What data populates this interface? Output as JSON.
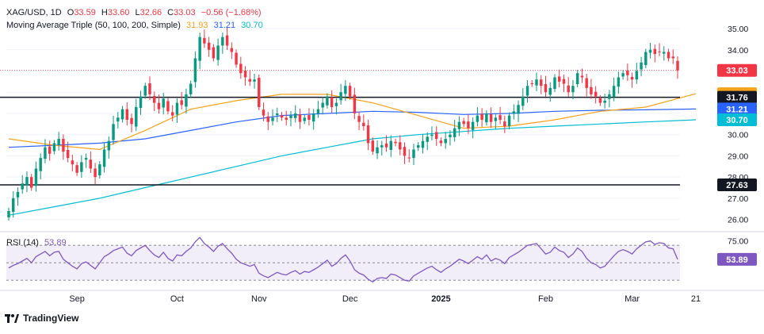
{
  "header": {
    "symbol": "XAG/USD, 1D",
    "open_label": "O",
    "open": "33.59",
    "high_label": "H",
    "high": "33.60",
    "low_label": "L",
    "low": "32.66",
    "close_label": "C",
    "close": "33.03",
    "change": "−0.56 (−1.68%)"
  },
  "ma_legend": {
    "label": "Moving Average Triple (50, 100, 200, Simple)",
    "ma50": "31.93",
    "ma100": "31.21",
    "ma200": "30.70"
  },
  "rsi_legend": {
    "label": "RSI (14)",
    "value": "53.89"
  },
  "brand": "TradingView",
  "colors": {
    "up": "#089981",
    "down": "#f23645",
    "ma50": "#f7a21b",
    "ma100": "#2962ff",
    "ma200": "#00bcd4",
    "rsi": "#7e57c2"
  },
  "chart_data": {
    "type": "candlestick",
    "price_axis_ticks": [
      "35.00",
      "34.00",
      "33.00",
      "32.00",
      "31.00",
      "30.00",
      "29.00",
      "28.00",
      "27.00",
      "26.00"
    ],
    "price_range": [
      25.5,
      35.6
    ],
    "rsi_axis_ticks": [
      "75.00"
    ],
    "x_labels": [
      {
        "label": "Sep",
        "i": 15
      },
      {
        "label": "Oct",
        "i": 37
      },
      {
        "label": "Nov",
        "i": 55
      },
      {
        "label": "Dec",
        "i": 75
      },
      {
        "label": "2025",
        "i": 95
      },
      {
        "label": "Feb",
        "i": 118
      },
      {
        "label": "Mar",
        "i": 137
      },
      {
        "label": "21",
        "i": 151
      }
    ],
    "horizontal_levels": [
      31.76,
      27.63
    ],
    "price_tags": [
      {
        "value": "33.03",
        "color": "#f23645"
      },
      {
        "value": "31.93",
        "color": "#f7a21b"
      },
      {
        "value": "31.76",
        "color": "#131722"
      },
      {
        "value": "31.21",
        "color": "#2962ff"
      },
      {
        "value": "30.70",
        "color": "#00bcd4"
      },
      {
        "value": "27.63",
        "color": "#131722"
      }
    ],
    "rsi_tag": {
      "value": "53.89",
      "color": "#7e57c2"
    },
    "close": [
      26.4,
      27.0,
      27.3,
      27.7,
      28.0,
      27.5,
      28.4,
      28.9,
      29.4,
      29.1,
      29.6,
      29.8,
      29.2,
      28.9,
      28.6,
      28.2,
      28.7,
      28.9,
      28.4,
      28.0,
      28.6,
      29.3,
      29.7,
      30.5,
      30.8,
      31.2,
      30.7,
      30.5,
      31.3,
      31.8,
      32.3,
      31.9,
      31.5,
      31.2,
      31.7,
      31.1,
      30.9,
      31.5,
      31.4,
      31.9,
      32.4,
      33.6,
      34.6,
      34.3,
      34.0,
      33.6,
      34.2,
      34.6,
      34.2,
      33.9,
      33.3,
      32.9,
      32.7,
      32.5,
      32.6,
      31.3,
      30.9,
      30.6,
      30.8,
      31.0,
      30.8,
      30.7,
      30.9,
      31.0,
      30.6,
      30.8,
      30.7,
      31.0,
      31.2,
      31.5,
      31.8,
      31.3,
      31.5,
      32.0,
      32.3,
      31.8,
      31.0,
      30.6,
      30.4,
      29.6,
      29.2,
      29.4,
      29.5,
      29.4,
      29.7,
      29.6,
      29.3,
      29.0,
      28.9,
      29.3,
      29.5,
      29.7,
      29.9,
      30.0,
      29.8,
      29.6,
      29.8,
      30.0,
      30.3,
      30.6,
      30.5,
      30.3,
      30.6,
      30.9,
      30.7,
      31.0,
      30.6,
      30.8,
      30.7,
      30.4,
      30.9,
      31.1,
      31.4,
      31.8,
      32.3,
      32.4,
      32.6,
      32.3,
      32.0,
      32.2,
      32.7,
      32.5,
      32.4,
      32.0,
      32.3,
      32.9,
      32.7,
      32.2,
      31.9,
      31.8,
      31.5,
      31.6,
      31.9,
      32.3,
      32.7,
      32.9,
      32.8,
      32.6,
      33.0,
      33.4,
      33.9,
      34.0,
      33.8,
      33.9,
      33.9,
      33.6,
      33.6,
      33.03
    ],
    "ma50_start": 29.8,
    "ma50_points": [
      [
        0,
        29.8
      ],
      [
        10,
        29.5
      ],
      [
        20,
        29.3
      ],
      [
        30,
        30.2
      ],
      [
        40,
        31.2
      ],
      [
        50,
        31.6
      ],
      [
        60,
        31.9
      ],
      [
        70,
        31.9
      ],
      [
        80,
        31.5
      ],
      [
        90,
        30.9
      ],
      [
        100,
        30.3
      ],
      [
        110,
        30.4
      ],
      [
        120,
        30.7
      ],
      [
        130,
        31.1
      ],
      [
        140,
        31.3
      ],
      [
        151,
        31.93
      ]
    ],
    "ma100_points": [
      [
        0,
        29.4
      ],
      [
        10,
        29.5
      ],
      [
        20,
        29.6
      ],
      [
        30,
        29.8
      ],
      [
        40,
        30.2
      ],
      [
        50,
        30.6
      ],
      [
        60,
        30.9
      ],
      [
        70,
        31.0
      ],
      [
        80,
        31.1
      ],
      [
        90,
        31.05
      ],
      [
        100,
        30.95
      ],
      [
        110,
        31.0
      ],
      [
        120,
        31.1
      ],
      [
        130,
        31.15
      ],
      [
        140,
        31.17
      ],
      [
        151,
        31.21
      ]
    ],
    "ma200_points": [
      [
        0,
        26.2
      ],
      [
        10,
        26.6
      ],
      [
        20,
        27.0
      ],
      [
        30,
        27.5
      ],
      [
        40,
        28.0
      ],
      [
        50,
        28.5
      ],
      [
        60,
        29.0
      ],
      [
        70,
        29.4
      ],
      [
        80,
        29.8
      ],
      [
        90,
        30.0
      ],
      [
        100,
        30.15
      ],
      [
        110,
        30.3
      ],
      [
        120,
        30.4
      ],
      [
        130,
        30.5
      ],
      [
        140,
        30.6
      ],
      [
        151,
        30.7
      ]
    ],
    "rsi": [
      44,
      47,
      49,
      52,
      55,
      50,
      57,
      60,
      63,
      58,
      62,
      63,
      54,
      50,
      46,
      43,
      49,
      51,
      47,
      43,
      50,
      57,
      60,
      64,
      66,
      68,
      61,
      58,
      64,
      67,
      70,
      64,
      59,
      56,
      62,
      55,
      52,
      59,
      58,
      63,
      67,
      74,
      79,
      72,
      68,
      63,
      69,
      72,
      66,
      61,
      54,
      50,
      48,
      46,
      48,
      38,
      35,
      33,
      36,
      39,
      37,
      36,
      39,
      41,
      37,
      40,
      39,
      42,
      45,
      49,
      53,
      46,
      49,
      55,
      59,
      52,
      42,
      38,
      36,
      31,
      28,
      32,
      33,
      32,
      37,
      36,
      33,
      30,
      29,
      35,
      38,
      41,
      44,
      46,
      42,
      39,
      43,
      46,
      50,
      54,
      52,
      49,
      53,
      57,
      54,
      59,
      52,
      55,
      53,
      49,
      56,
      59,
      62,
      66,
      70,
      71,
      72,
      66,
      60,
      62,
      68,
      64,
      62,
      56,
      60,
      67,
      63,
      55,
      50,
      48,
      44,
      46,
      52,
      58,
      63,
      65,
      63,
      60,
      66,
      70,
      74,
      75,
      71,
      73,
      72,
      67,
      66,
      53.89
    ]
  }
}
